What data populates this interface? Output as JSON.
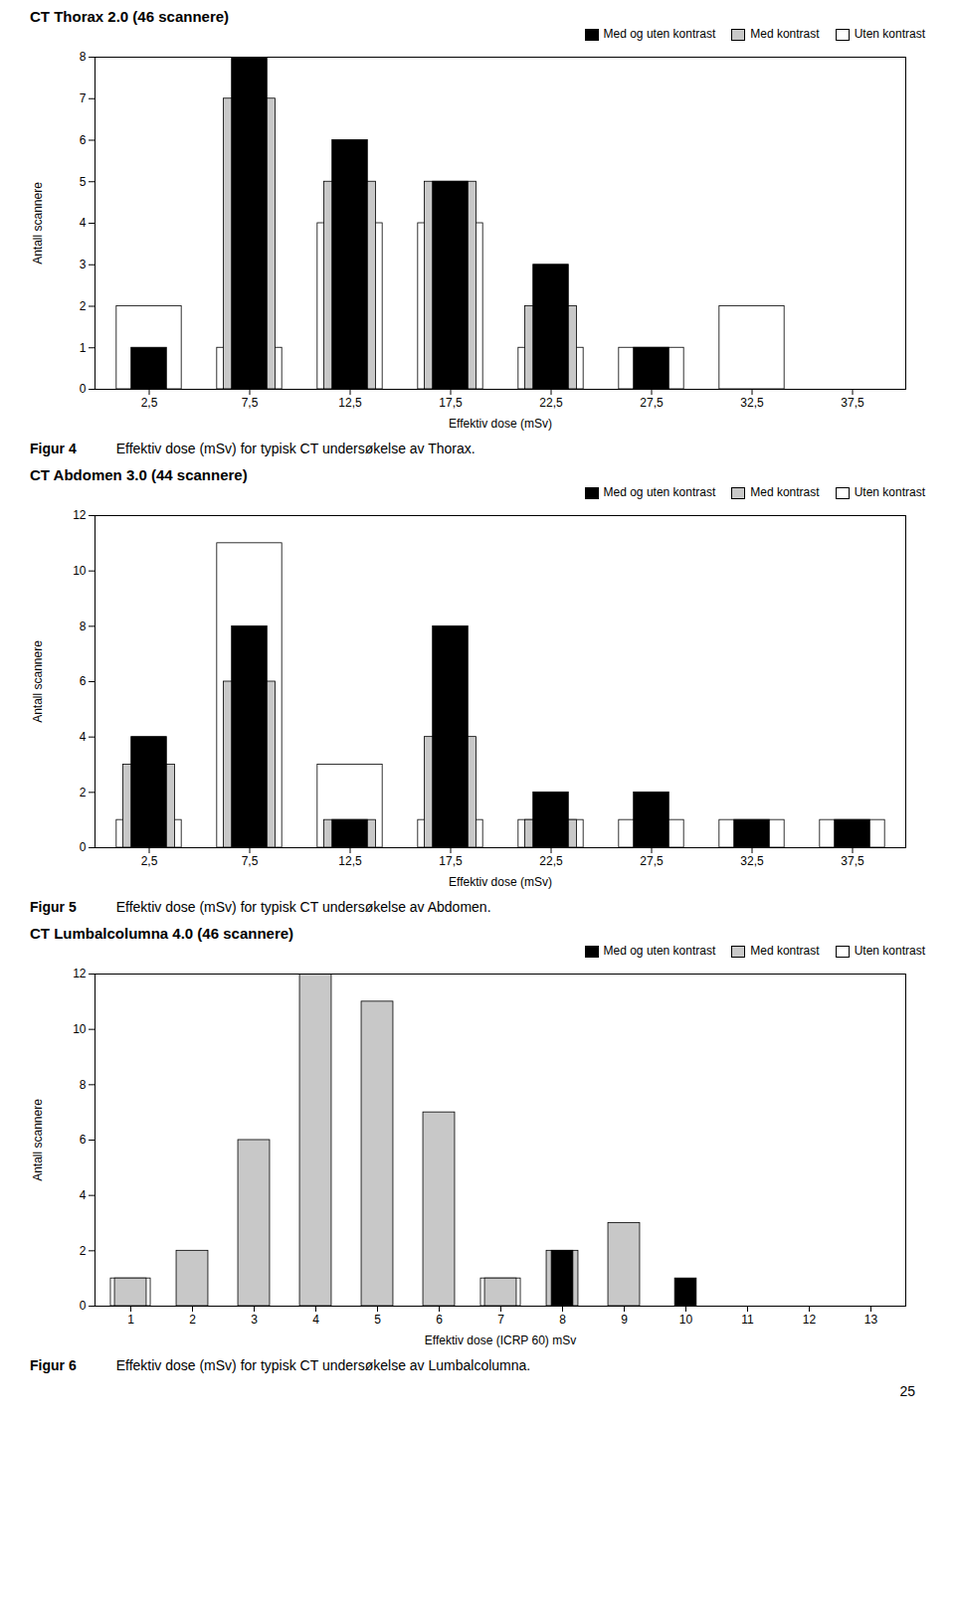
{
  "chart_data": [
    {
      "type": "bar",
      "title": "CT Thorax 2.0 (46 scannere)",
      "xlabel": "Effektiv dose (mSv)",
      "ylabel": "Antall scannere",
      "categories": [
        "2,5",
        "7,5",
        "12,5",
        "17,5",
        "22,5",
        "27,5",
        "32,5",
        "37,5"
      ],
      "series": [
        {
          "name": "Med og uten kontrast",
          "color": "#000000",
          "values": [
            1,
            8,
            6,
            5,
            3,
            1,
            0,
            0
          ]
        },
        {
          "name": "Med kontrast",
          "color": "#c8c8c8",
          "values": [
            0,
            7,
            5,
            5,
            2,
            0,
            0,
            0
          ]
        },
        {
          "name": "Uten kontrast",
          "color": "#ffffff",
          "values": [
            2,
            1,
            4,
            4,
            1,
            1,
            2,
            0
          ]
        }
      ],
      "ylim": [
        0,
        8
      ],
      "yticks": [
        0,
        1,
        2,
        3,
        4,
        5,
        6,
        7,
        8
      ],
      "grid": false,
      "legend": "upper right",
      "annotations": [
        "Figur 4",
        "Effektiv dose (mSv) for typisk CT undersøkelse av Thorax."
      ]
    },
    {
      "type": "bar",
      "title": "CT Abdomen 3.0 (44 scannere)",
      "xlabel": "Effektiv dose (mSv)",
      "ylabel": "Antall scannere",
      "categories": [
        "2,5",
        "7,5",
        "12,5",
        "17,5",
        "22,5",
        "27,5",
        "32,5",
        "37,5"
      ],
      "series": [
        {
          "name": "Med og uten kontrast",
          "color": "#000000",
          "values": [
            4,
            8,
            1,
            8,
            2,
            2,
            1,
            1
          ]
        },
        {
          "name": "Med kontrast",
          "color": "#c8c8c8",
          "values": [
            3,
            6,
            1,
            4,
            1,
            0,
            0,
            0
          ]
        },
        {
          "name": "Uten kontrast",
          "color": "#ffffff",
          "values": [
            1,
            11,
            3,
            1,
            1,
            1,
            1,
            1
          ]
        }
      ],
      "ylim": [
        0,
        12
      ],
      "yticks": [
        0,
        2,
        4,
        6,
        8,
        10,
        12
      ],
      "grid": false,
      "legend": "upper right",
      "annotations": [
        "Figur 5",
        "Effektiv dose (mSv) for typisk CT undersøkelse av Abdomen."
      ]
    },
    {
      "type": "bar",
      "title": "CT Lumbalcolumna 4.0 (46 scannere)",
      "xlabel": "Effektiv dose (ICRP 60) mSv",
      "ylabel": "Antall scannere",
      "categories": [
        "1",
        "2",
        "3",
        "4",
        "5",
        "6",
        "7",
        "8",
        "9",
        "10",
        "11",
        "12",
        "13"
      ],
      "series": [
        {
          "name": "Med og uten kontrast",
          "color": "#000000",
          "values": [
            0,
            0,
            0,
            0,
            0,
            0,
            0,
            2,
            0,
            1,
            0,
            0,
            0
          ]
        },
        {
          "name": "Med kontrast",
          "color": "#c8c8c8",
          "values": [
            1,
            2,
            6,
            12,
            11,
            7,
            1,
            2,
            3,
            0,
            0,
            0,
            0
          ]
        },
        {
          "name": "Uten kontrast",
          "color": "#ffffff",
          "values": [
            1,
            0,
            0,
            0,
            0,
            0,
            1,
            0,
            0,
            0,
            0,
            0,
            0
          ]
        }
      ],
      "ylim": [
        0,
        12
      ],
      "yticks": [
        0,
        2,
        4,
        6,
        8,
        10,
        12
      ],
      "grid": false,
      "legend": "upper right",
      "annotations": [
        "Figur 6",
        "Effektiv dose (mSv) for typisk CT undersøkelse av Lumbalcolumna."
      ]
    }
  ],
  "annotations": [
    "25"
  ]
}
